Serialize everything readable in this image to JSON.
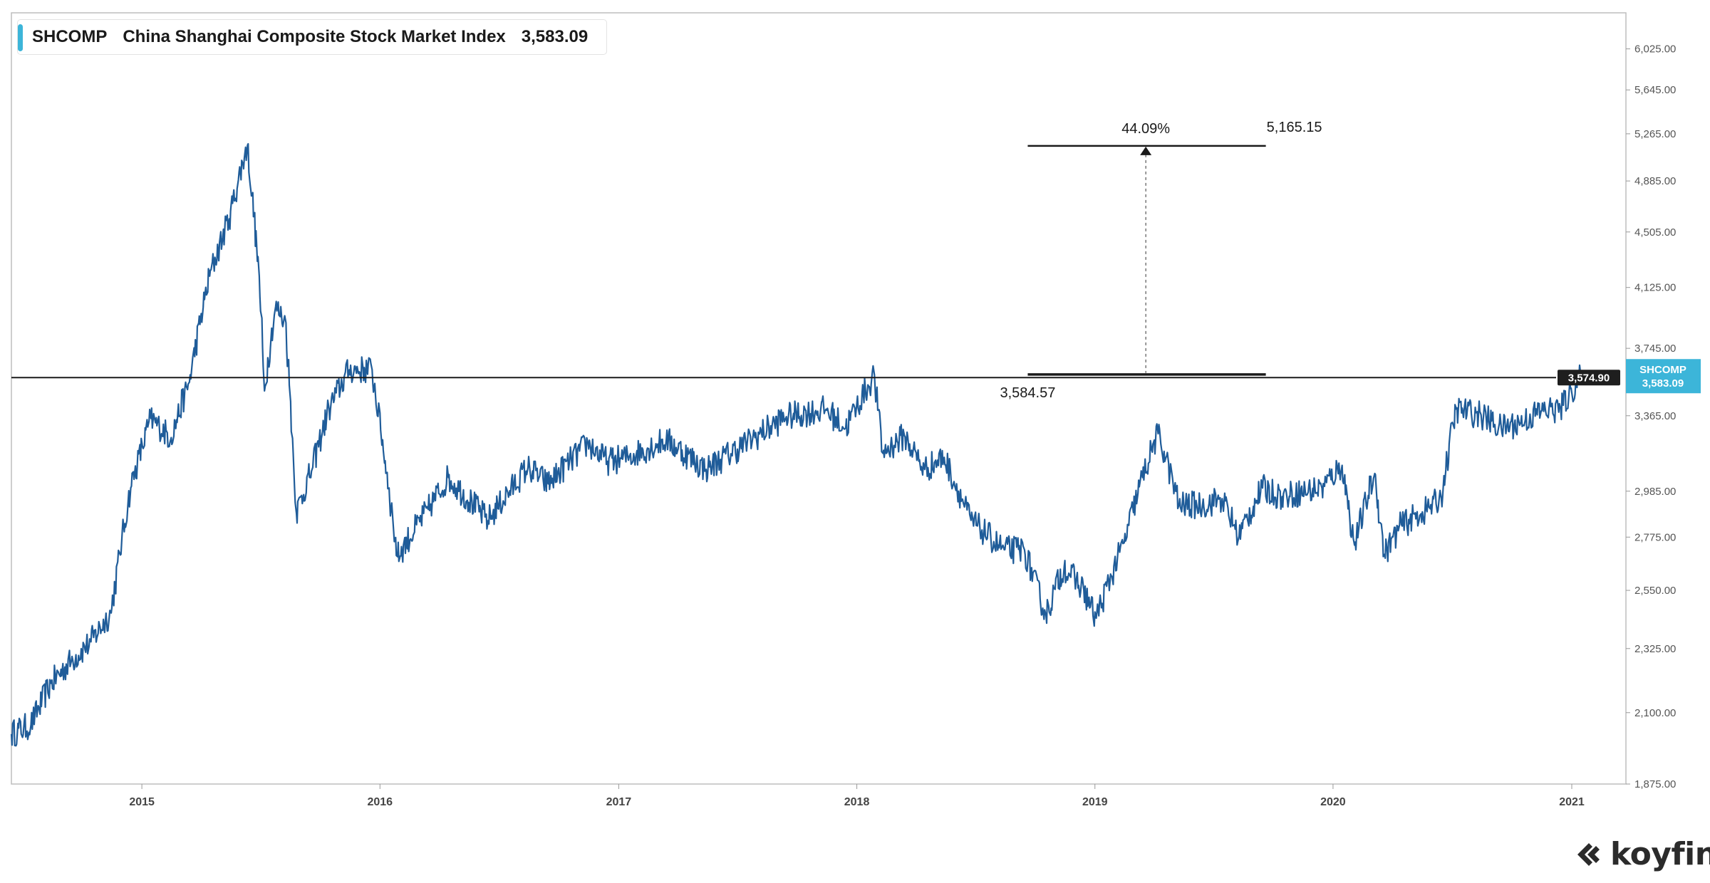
{
  "legend": {
    "ticker": "SHCOMP",
    "name": "China Shanghai Composite Stock Market Index",
    "value": "3,583.09"
  },
  "measure": {
    "percent_label": "44.09%",
    "top_label": "5,165.15",
    "bottom_label": "3,584.57"
  },
  "price_tag": {
    "ticker": "SHCOMP",
    "value": "3,583.09",
    "line_value_label": "3,574.90"
  },
  "brand": {
    "name": "koyfin"
  },
  "colors": {
    "series": "#1f5c99",
    "accent": "#3cb5d9",
    "dark_tag": "#1e1e1e",
    "hline": "#1a1a1a"
  },
  "chart_data": {
    "type": "line",
    "title": "China Shanghai Composite Stock Market Index",
    "series_name": "SHCOMP",
    "x_start": "2014-06-15",
    "x_end": "2021-03-25",
    "ylim": [
      1875,
      6380
    ],
    "y_ticks": [
      1875,
      2100,
      2325,
      2550,
      2775,
      2985,
      3365,
      3745,
      4125,
      4505,
      4885,
      5265,
      5645,
      6025
    ],
    "y_tick_labels": [
      "1,875.00",
      "2,100.00",
      "2,325.00",
      "2,550.00",
      "2,775.00",
      "2,985.00",
      "3,365.00",
      "3,745.00",
      "4,125.00",
      "4,505.00",
      "4,885.00",
      "5,265.00",
      "5,645.00",
      "6,025.00"
    ],
    "x_ticks": [
      "2015-01-01",
      "2016-01-01",
      "2017-01-01",
      "2018-01-01",
      "2019-01-01",
      "2020-01-01",
      "2021-01-01"
    ],
    "x_tick_labels": [
      "2015",
      "2016",
      "2017",
      "2018",
      "2019",
      "2020",
      "2021"
    ],
    "horizontal_line": 3574.9,
    "measure_line_top": 5165.15,
    "measure_line_bottom": 3584.57,
    "measure_x_range": [
      "2018-09-20",
      "2019-09-20"
    ],
    "measure_arrow_x": "2019-03-20",
    "points": [
      [
        "2014-06-15",
        2030
      ],
      [
        "2014-07-15",
        2060
      ],
      [
        "2014-08-15",
        2200
      ],
      [
        "2014-09-15",
        2280
      ],
      [
        "2014-10-15",
        2350
      ],
      [
        "2014-11-15",
        2460
      ],
      [
        "2014-12-15",
        3000
      ],
      [
        "2015-01-15",
        3350
      ],
      [
        "2015-02-15",
        3250
      ],
      [
        "2015-03-15",
        3550
      ],
      [
        "2015-04-15",
        4200
      ],
      [
        "2015-05-15",
        4600
      ],
      [
        "2015-06-12",
        5170
      ],
      [
        "2015-06-30",
        4200
      ],
      [
        "2015-07-08",
        3500
      ],
      [
        "2015-07-25",
        4000
      ],
      [
        "2015-08-10",
        3900
      ],
      [
        "2015-08-26",
        2880
      ],
      [
        "2015-09-20",
        3100
      ],
      [
        "2015-10-15",
        3400
      ],
      [
        "2015-11-15",
        3620
      ],
      [
        "2015-12-20",
        3620
      ],
      [
        "2016-01-15",
        3000
      ],
      [
        "2016-01-28",
        2690
      ],
      [
        "2016-03-15",
        2900
      ],
      [
        "2016-04-15",
        3050
      ],
      [
        "2016-06-15",
        2850
      ],
      [
        "2016-08-15",
        3100
      ],
      [
        "2016-09-15",
        3020
      ],
      [
        "2016-11-15",
        3220
      ],
      [
        "2016-12-15",
        3130
      ],
      [
        "2017-01-15",
        3150
      ],
      [
        "2017-03-15",
        3240
      ],
      [
        "2017-05-15",
        3090
      ],
      [
        "2017-07-15",
        3220
      ],
      [
        "2017-09-15",
        3360
      ],
      [
        "2017-11-15",
        3400
      ],
      [
        "2017-12-15",
        3300
      ],
      [
        "2018-01-28",
        3590
      ],
      [
        "2018-02-10",
        3170
      ],
      [
        "2018-03-15",
        3260
      ],
      [
        "2018-04-15",
        3090
      ],
      [
        "2018-05-15",
        3150
      ],
      [
        "2018-06-25",
        2850
      ],
      [
        "2018-07-15",
        2800
      ],
      [
        "2018-08-15",
        2720
      ],
      [
        "2018-09-15",
        2720
      ],
      [
        "2018-10-18",
        2450
      ],
      [
        "2018-11-15",
        2650
      ],
      [
        "2018-12-15",
        2550
      ],
      [
        "2019-01-03",
        2440
      ],
      [
        "2019-02-15",
        2750
      ],
      [
        "2019-03-15",
        3050
      ],
      [
        "2019-04-08",
        3270
      ],
      [
        "2019-04-20",
        3150
      ],
      [
        "2019-05-10",
        2920
      ],
      [
        "2019-06-15",
        2920
      ],
      [
        "2019-07-15",
        2950
      ],
      [
        "2019-08-10",
        2780
      ],
      [
        "2019-09-15",
        3000
      ],
      [
        "2019-10-15",
        2960
      ],
      [
        "2019-12-15",
        3000
      ],
      [
        "2020-01-15",
        3110
      ],
      [
        "2020-02-03",
        2740
      ],
      [
        "2020-03-05",
        3070
      ],
      [
        "2020-03-20",
        2700
      ],
      [
        "2020-04-15",
        2830
      ],
      [
        "2020-05-15",
        2880
      ],
      [
        "2020-06-15",
        2950
      ],
      [
        "2020-07-08",
        3400
      ],
      [
        "2020-08-15",
        3370
      ],
      [
        "2020-09-15",
        3300
      ],
      [
        "2020-10-15",
        3330
      ],
      [
        "2020-11-15",
        3390
      ],
      [
        "2020-12-15",
        3400
      ],
      [
        "2021-01-15",
        3583.09
      ]
    ]
  }
}
